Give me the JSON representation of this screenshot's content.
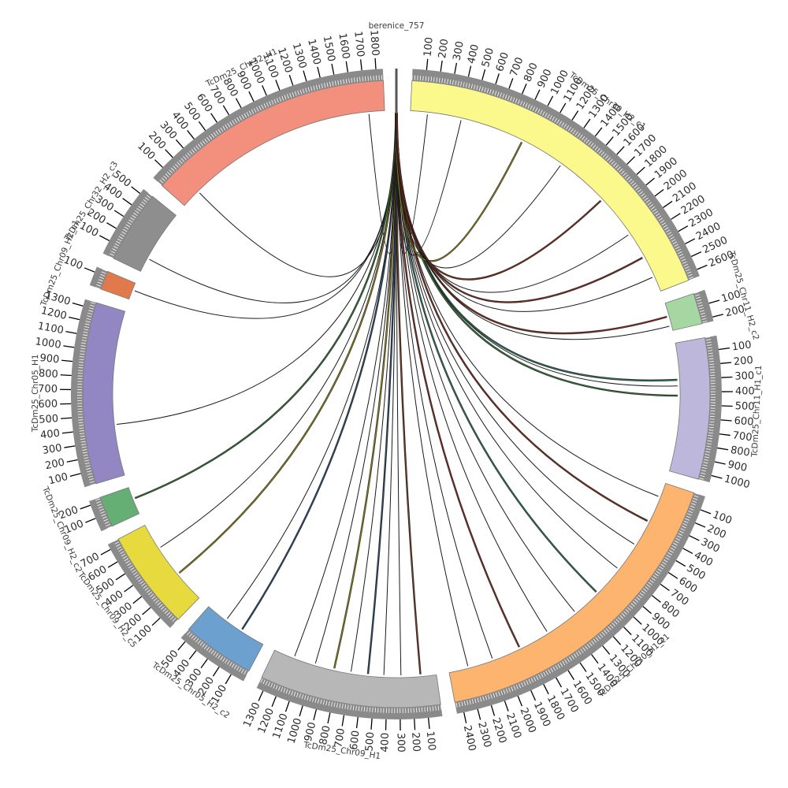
{
  "chart_data": {
    "type": "chord",
    "description": "Circos-style chord diagram: links from berenice_757 (top) to assembly contigs",
    "units": "kb",
    "tick_interval": 100,
    "layout": {
      "gap_deg": 2.6,
      "start_angle_deg": 0,
      "direction": "clockwise"
    },
    "source_segment": "berenice_757",
    "segments": [
      {
        "id": "berenice_757",
        "label": "berenice_757",
        "length": 0.757,
        "tick_max": 0,
        "color": "#555555"
      },
      {
        "id": "TcDm25_Chr30_H2_c1",
        "label": "TcDm25_Chr30_H2_c1",
        "length": 2650,
        "tick_max": 2600,
        "color": "#FBF98C"
      },
      {
        "id": "TcDm25_Chr11_H2_c2",
        "label": "TcDm25_Chr11_H2_c2",
        "length": 230,
        "tick_max": 200,
        "color": "#A6D7A2"
      },
      {
        "id": "TcDm25_Chr11_H1_c1",
        "label": "TcDm25_Chr11_H1_c1",
        "length": 1050,
        "tick_max": 1000,
        "color": "#BDB8DB"
      },
      {
        "id": "TcDm25_Chr30_H1_c1",
        "label": "TcDm25_Chr30_H1_c1",
        "length": 2450,
        "tick_max": 2400,
        "color": "#FDB46F"
      },
      {
        "id": "TcDm25_Chr09_H1",
        "label": "TcDm25_Chr09_H1",
        "length": 1350,
        "tick_max": 1300,
        "color": "#B7B7B7"
      },
      {
        "id": "TcDm25_Chr05_H2_c2",
        "label": "TcDm25_Chr05_H2_c2",
        "length": 540,
        "tick_max": 500,
        "color": "#6CA0CF"
      },
      {
        "id": "TcDm25_Chr09_H2_c5",
        "label": "TcDm25_Chr09_H2_c5",
        "length": 740,
        "tick_max": 700,
        "color": "#E6DA3E"
      },
      {
        "id": "TcDm25_Chr09_H2_c2",
        "label": "TcDm25_Chr09_H2_c2",
        "length": 230,
        "tick_max": 200,
        "color": "#65AE74"
      },
      {
        "id": "TcDm25_Chr05_H1",
        "label": "TcDm25_Chr05_H1",
        "length": 1350,
        "tick_max": 1300,
        "color": "#9287C3"
      },
      {
        "id": "TcDm25_Chr09_H2_c1",
        "label": "TcDm25_Chr09_H2_c1",
        "length": 140,
        "tick_max": 100,
        "color": "#E07A4D"
      },
      {
        "id": "TcDm25_Chr32_H2_c3",
        "label": "TcDm25_Chr32_H2_c3",
        "length": 540,
        "tick_max": 500,
        "color": "#8E8E8E"
      },
      {
        "id": "TcDm25_Chr32_H1",
        "label": "TcDm25_Chr32_H1",
        "length": 1850,
        "tick_max": 1800,
        "color": "#F2907D"
      }
    ],
    "links": [
      {
        "source": "berenice_757",
        "target": "TcDm25_Chr32_H2_c3",
        "pos": 120,
        "color": "#1a1a1a"
      },
      {
        "source": "berenice_757",
        "target": "TcDm25_Chr32_H1",
        "pos": 160,
        "color": "#1a1a1a"
      },
      {
        "source": "berenice_757",
        "target": "TcDm25_Chr32_H1",
        "pos": 1720,
        "color": "#1a1a1a"
      },
      {
        "source": "berenice_757",
        "target": "TcDm25_Chr05_H1",
        "pos": 420,
        "color": "#1a1a1a"
      },
      {
        "source": "berenice_757",
        "target": "TcDm25_Chr09_H2_c1",
        "pos": 80,
        "color": "#1a1a1a"
      },
      {
        "source": "berenice_757",
        "target": "TcDm25_Chr09_H2_c2",
        "pos": 130,
        "color": "#356e35"
      },
      {
        "source": "berenice_757",
        "target": "TcDm25_Chr09_H2_c5",
        "pos": 260,
        "color": "#8a7d1e"
      },
      {
        "source": "berenice_757",
        "target": "TcDm25_Chr09_H2_c5",
        "pos": 520,
        "color": "#1a1a1a"
      },
      {
        "source": "berenice_757",
        "target": "TcDm25_Chr05_H2_c2",
        "pos": 210,
        "color": "#2b4a6f"
      },
      {
        "source": "berenice_757",
        "target": "TcDm25_Chr05_H2_c2",
        "pos": 360,
        "color": "#1a1a1a"
      },
      {
        "source": "berenice_757",
        "target": "TcDm25_Chr09_H1",
        "pos": 130,
        "color": "#6e3a23"
      },
      {
        "source": "berenice_757",
        "target": "TcDm25_Chr09_H1",
        "pos": 290,
        "color": "#1a1a1a"
      },
      {
        "source": "berenice_757",
        "target": "TcDm25_Chr09_H1",
        "pos": 430,
        "color": "#1a1a1a"
      },
      {
        "source": "berenice_757",
        "target": "TcDm25_Chr09_H1",
        "pos": 560,
        "color": "#2b4a6f"
      },
      {
        "source": "berenice_757",
        "target": "TcDm25_Chr09_H1",
        "pos": 700,
        "color": "#1a1a1a"
      },
      {
        "source": "berenice_757",
        "target": "TcDm25_Chr09_H1",
        "pos": 840,
        "color": "#8a7d1e"
      },
      {
        "source": "berenice_757",
        "target": "TcDm25_Chr09_H1",
        "pos": 1000,
        "color": "#1a1a1a"
      },
      {
        "source": "berenice_757",
        "target": "TcDm25_Chr09_H1",
        "pos": 1180,
        "color": "#1a1a1a"
      },
      {
        "source": "berenice_757",
        "target": "TcDm25_Chr30_H1_c1",
        "pos": 120,
        "color": "#1a1a1a"
      },
      {
        "source": "berenice_757",
        "target": "TcDm25_Chr30_H1_c1",
        "pos": 340,
        "color": "#7a2e1e"
      },
      {
        "source": "berenice_757",
        "target": "TcDm25_Chr30_H1_c1",
        "pos": 560,
        "color": "#1a1a1a"
      },
      {
        "source": "berenice_757",
        "target": "TcDm25_Chr30_H1_c1",
        "pos": 800,
        "color": "#1a1a1a"
      },
      {
        "source": "berenice_757",
        "target": "TcDm25_Chr30_H1_c1",
        "pos": 1060,
        "color": "#2e6e5e"
      },
      {
        "source": "berenice_757",
        "target": "TcDm25_Chr30_H1_c1",
        "pos": 1300,
        "color": "#1a1a1a"
      },
      {
        "source": "berenice_757",
        "target": "TcDm25_Chr30_H1_c1",
        "pos": 1580,
        "color": "#1a1a1a"
      },
      {
        "source": "berenice_757",
        "target": "TcDm25_Chr30_H1_c1",
        "pos": 1840,
        "color": "#7a2e1e"
      },
      {
        "source": "berenice_757",
        "target": "TcDm25_Chr30_H1_c1",
        "pos": 2080,
        "color": "#1a1a1a"
      },
      {
        "source": "berenice_757",
        "target": "TcDm25_Chr30_H1_c1",
        "pos": 2290,
        "color": "#1a1a1a"
      },
      {
        "source": "berenice_757",
        "target": "TcDm25_Chr11_H1_c1",
        "pos": 300,
        "color": "#2e6e5e"
      },
      {
        "source": "berenice_757",
        "target": "TcDm25_Chr11_H1_c1",
        "pos": 350,
        "color": "#1a1a1a"
      },
      {
        "source": "berenice_757",
        "target": "TcDm25_Chr11_H1_c1",
        "pos": 430,
        "color": "#356e35"
      },
      {
        "source": "berenice_757",
        "target": "TcDm25_Chr11_H2_c2",
        "pos": 110,
        "color": "#7a2e1e"
      },
      {
        "source": "berenice_757",
        "target": "TcDm25_Chr11_H2_c2",
        "pos": 190,
        "color": "#1a1a1a"
      },
      {
        "source": "berenice_757",
        "target": "TcDm25_Chr30_H2_c1",
        "pos": 140,
        "color": "#1a1a1a"
      },
      {
        "source": "berenice_757",
        "target": "TcDm25_Chr30_H2_c1",
        "pos": 420,
        "color": "#1a1a1a"
      },
      {
        "source": "berenice_757",
        "target": "TcDm25_Chr30_H2_c1",
        "pos": 950,
        "color": "#8a7d1e"
      },
      {
        "source": "berenice_757",
        "target": "TcDm25_Chr30_H2_c1",
        "pos": 1320,
        "color": "#1a1a1a"
      },
      {
        "source": "berenice_757",
        "target": "TcDm25_Chr30_H2_c1",
        "pos": 1760,
        "color": "#7a2e1e"
      },
      {
        "source": "berenice_757",
        "target": "TcDm25_Chr30_H2_c1",
        "pos": 2120,
        "color": "#1a1a1a"
      },
      {
        "source": "berenice_757",
        "target": "TcDm25_Chr30_H2_c1",
        "pos": 2340,
        "color": "#7a2e1e"
      },
      {
        "source": "berenice_757",
        "target": "TcDm25_Chr30_H2_c1",
        "pos": 2520,
        "color": "#1a1a1a"
      }
    ],
    "style": {
      "background": "#ffffff",
      "ruler_band_color": "#8a8a8a",
      "ruler_dash_color": "#ffffff",
      "tick_color": "#000000",
      "tick_label_color": "#2b2b2b",
      "segment_label_color": "#3a3a3a",
      "segment_border_color": "#777777"
    }
  }
}
